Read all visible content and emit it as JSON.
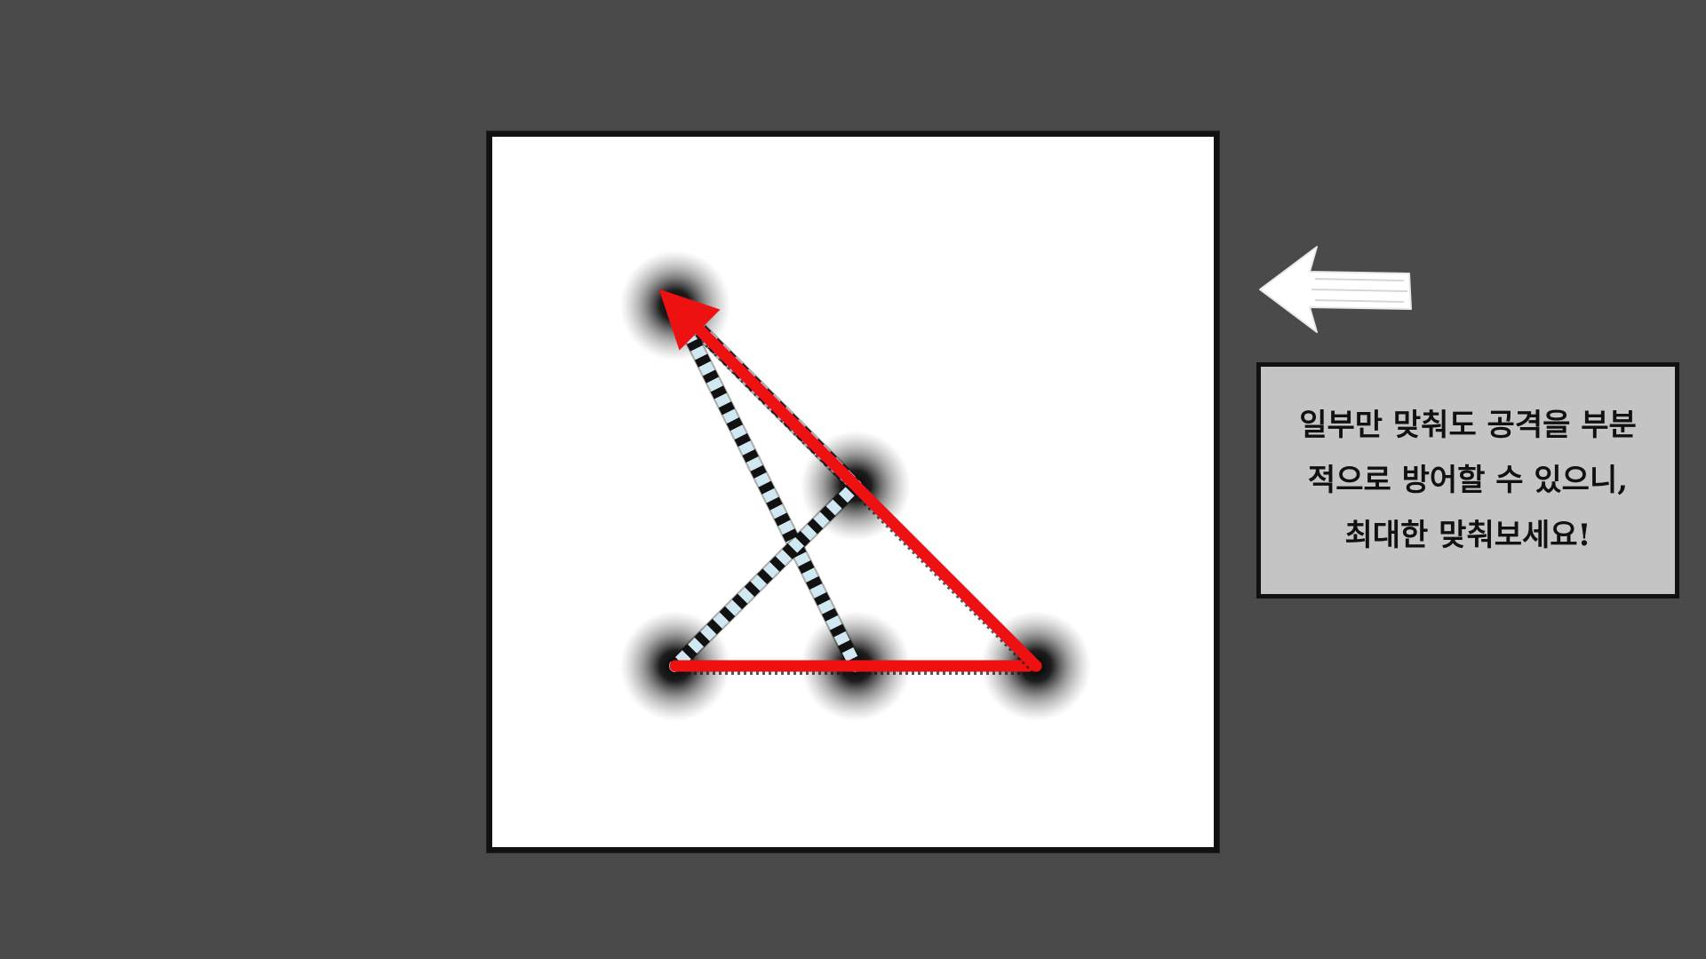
{
  "tooltip": {
    "text": "일부만 맞춰도 공격을 부분적으로 방어할 수 있으니, 최대한 맞춰보세요!"
  },
  "colors": {
    "background": "#4a4a4a",
    "board": "#ffffff",
    "tooltip_bg": "#c4c4c4",
    "attack_line": "#ee1111",
    "pattern_fill": "#cfe8f2",
    "pattern_dash": "#111111",
    "arrow": "#ffffff"
  },
  "icons": {
    "hint": "arrow-left-icon"
  },
  "pattern": {
    "nodes": [
      {
        "id": "top-left",
        "col": 0,
        "row": 0
      },
      {
        "id": "center",
        "col": 1,
        "row": 1
      },
      {
        "id": "bottom-left",
        "col": 0,
        "row": 2
      },
      {
        "id": "bottom-middle",
        "col": 1,
        "row": 2
      },
      {
        "id": "bottom-right",
        "col": 2,
        "row": 2
      }
    ],
    "target_path": [
      "bottom-middle",
      "top-left",
      "center",
      "bottom-left"
    ],
    "drawn_path": [
      "bottom-left",
      "bottom-right",
      "top-left"
    ]
  }
}
